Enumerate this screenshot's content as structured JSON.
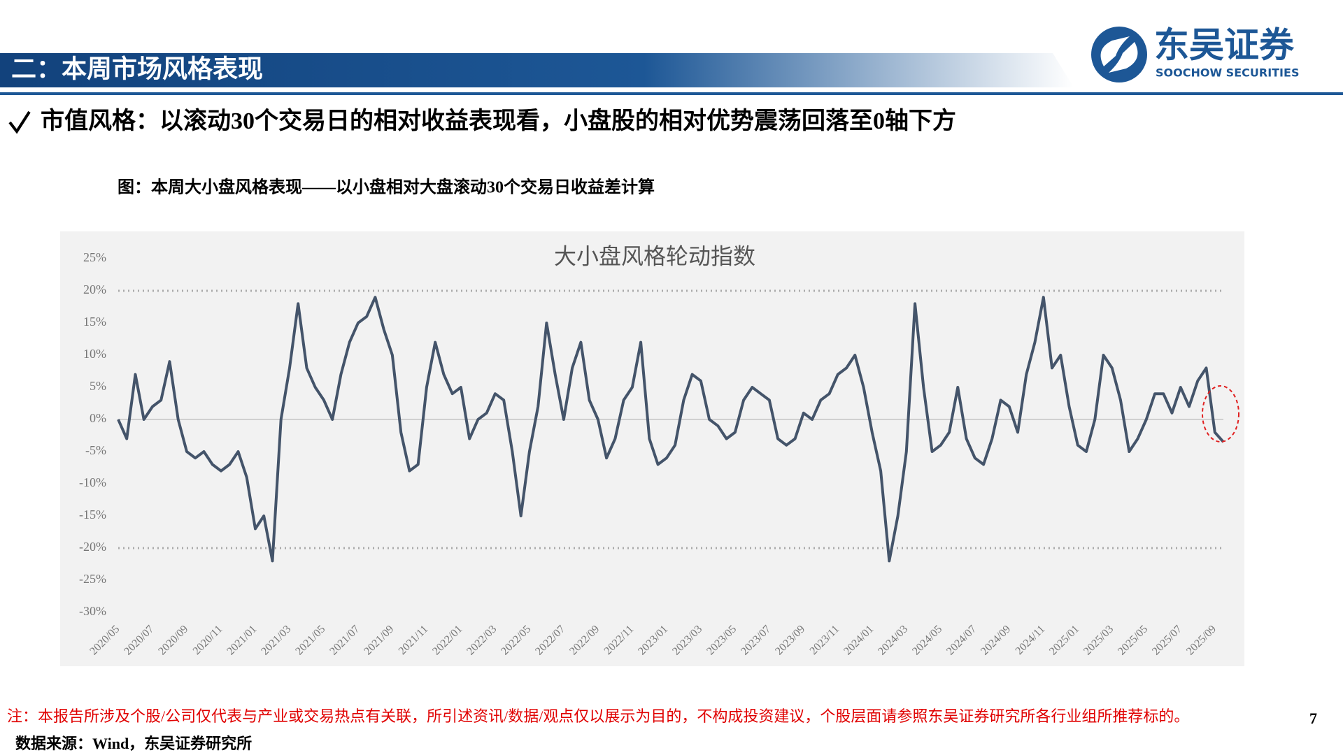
{
  "header": {
    "title": "二：本周市场风格表现",
    "logo_cn": "东吴证券",
    "logo_en": "SOOCHOW SECURITIES"
  },
  "bullet": "市值风格：以滚动30个交易日的相对收益表现看，小盘股的相对优势震荡回落至0轴下方",
  "caption": "图：本周大小盘风格表现——以小盘相对大盘滚动30个交易日收益差计算",
  "chart_data": {
    "type": "line",
    "title": "大小盘风格轮动指数",
    "categories": [
      "2020/05",
      null,
      null,
      null,
      "2020/07",
      null,
      null,
      null,
      "2020/09",
      null,
      null,
      null,
      "2020/11",
      null,
      null,
      null,
      "2021/01",
      null,
      null,
      null,
      "2021/03",
      null,
      null,
      null,
      "2021/05",
      null,
      null,
      null,
      "2021/07",
      null,
      null,
      null,
      "2021/09",
      null,
      null,
      null,
      "2021/11",
      null,
      null,
      null,
      "2022/01",
      null,
      null,
      null,
      "2022/03",
      null,
      null,
      null,
      "2022/05",
      null,
      null,
      null,
      "2022/07",
      null,
      null,
      null,
      "2022/09",
      null,
      null,
      null,
      "2022/11",
      null,
      null,
      null,
      "2023/01",
      null,
      null,
      null,
      "2023/03",
      null,
      null,
      null,
      "2023/05",
      null,
      null,
      null,
      "2023/07",
      null,
      null,
      null,
      "2023/09",
      null,
      null,
      null,
      "2023/11",
      null,
      null,
      null,
      "2024/01",
      null,
      null,
      null,
      "2024/03",
      null,
      null,
      null,
      "2024/05",
      null,
      null,
      null,
      "2024/07",
      null,
      null,
      null,
      "2024/09",
      null,
      null,
      null,
      "2024/11",
      null,
      null,
      null,
      "2025/01",
      null,
      null,
      null,
      "2025/03",
      null,
      null,
      null,
      "2025/05",
      null,
      null,
      null,
      "2025/07",
      null,
      null,
      null,
      "2025/09",
      null
    ],
    "series": [
      {
        "name": "大小盘风格轮动指数",
        "color": "#44546a",
        "values": [
          0,
          -3,
          7,
          0,
          2,
          3,
          9,
          0,
          -5,
          -6,
          -5,
          -7,
          -8,
          -7,
          -5,
          -9,
          -17,
          -15,
          -22,
          0,
          8,
          18,
          8,
          5,
          3,
          0,
          7,
          12,
          15,
          16,
          19,
          14,
          10,
          -2,
          -8,
          -7,
          5,
          12,
          7,
          4,
          5,
          -3,
          0,
          1,
          4,
          3,
          -5,
          -15,
          -5,
          2,
          15,
          7,
          0,
          8,
          12,
          3,
          0,
          -6,
          -3,
          3,
          5,
          12,
          -3,
          -7,
          -6,
          -4,
          3,
          7,
          6,
          0,
          -1,
          -3,
          -2,
          3,
          5,
          4,
          3,
          -3,
          -4,
          -3,
          1,
          0,
          3,
          4,
          7,
          8,
          10,
          5,
          -2,
          -8,
          -22,
          -15,
          -5,
          18,
          5,
          -5,
          -4,
          -2,
          5,
          -3,
          -6,
          -7,
          -3,
          3,
          2,
          -2,
          7,
          12,
          19,
          8,
          10,
          2,
          -4,
          -5,
          0,
          10,
          8,
          3,
          -5,
          -3,
          0,
          4,
          4,
          1,
          5,
          2,
          6,
          8,
          -2,
          -3.5
        ]
      }
    ],
    "ylim": [
      -30,
      25
    ],
    "yticks": [
      {
        "value": -30,
        "label": "-30%"
      },
      {
        "value": -25,
        "label": "-25%"
      },
      {
        "value": -20,
        "label": "-20%"
      },
      {
        "value": -15,
        "label": "-15%"
      },
      {
        "value": -10,
        "label": "-10%"
      },
      {
        "value": -5,
        "label": "-5%"
      },
      {
        "value": 0,
        "label": "0%"
      },
      {
        "value": 5,
        "label": "5%"
      },
      {
        "value": 10,
        "label": "10%"
      },
      {
        "value": 15,
        "label": "15%"
      },
      {
        "value": 20,
        "label": "20%"
      },
      {
        "value": 25,
        "label": "25%"
      }
    ],
    "reference_lines": [
      20,
      -20
    ]
  },
  "footer": {
    "note": "注：本报告所涉及个股/公司仅代表与产业或交易热点有关联，所引述资讯/数据/观点仅以展示为目的，不构成投资建议，个股层面请参照东吴证券研究所各行业组所推荐标的。",
    "page": "7",
    "source": "数据来源：Wind，东吴证券研究所"
  }
}
